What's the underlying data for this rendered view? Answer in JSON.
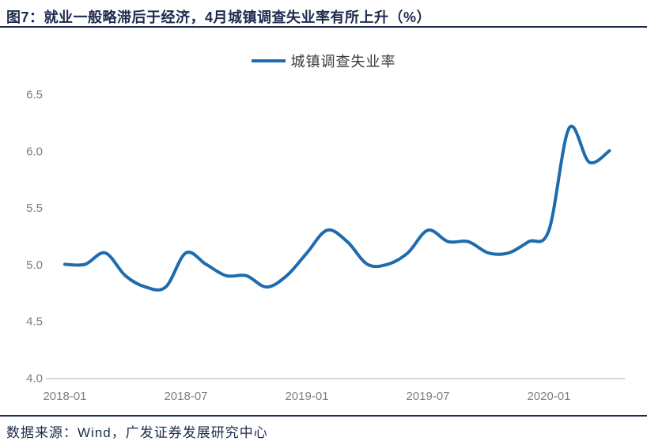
{
  "header": {
    "title": "图7：就业一般略滞后于经济，4月城镇调查失业率有所上升（%）"
  },
  "legend": {
    "label": "城镇调查失业率"
  },
  "footer": {
    "source": "数据来源：Wind，广发证券发展研究中心"
  },
  "colors": {
    "navy": "#1E2B4D",
    "line": "#1E6BAE",
    "tick": "#7F7F7F",
    "axis": "#C9C9C9",
    "legend_text": "#3A3A3C"
  },
  "chart_data": {
    "type": "line",
    "title": "城镇调查失业率",
    "series_name": "城镇调查失业率",
    "categories": [
      "2018-01",
      "2018-02",
      "2018-03",
      "2018-04",
      "2018-05",
      "2018-06",
      "2018-07",
      "2018-08",
      "2018-09",
      "2018-10",
      "2018-11",
      "2018-12",
      "2019-01",
      "2019-02",
      "2019-03",
      "2019-04",
      "2019-05",
      "2019-06",
      "2019-07",
      "2019-08",
      "2019-09",
      "2019-10",
      "2019-11",
      "2019-12",
      "2020-01",
      "2020-02",
      "2020-03",
      "2020-04"
    ],
    "values": [
      5.0,
      5.0,
      5.1,
      4.9,
      4.8,
      4.8,
      5.1,
      5.0,
      4.9,
      4.9,
      4.8,
      4.9,
      5.1,
      5.3,
      5.2,
      5.0,
      5.0,
      5.1,
      5.3,
      5.2,
      5.2,
      5.1,
      5.1,
      5.2,
      5.3,
      6.2,
      5.9,
      6.0
    ],
    "xticks": [
      "2018-01",
      "2018-07",
      "2019-01",
      "2019-07",
      "2020-01"
    ],
    "yticks": [
      4.0,
      4.5,
      5.0,
      5.5,
      6.0,
      6.5
    ],
    "ylim": [
      4.0,
      6.5
    ],
    "xlabel": "",
    "ylabel": "",
    "grid": false,
    "legend_position": "top-center",
    "line_style": "smooth"
  }
}
